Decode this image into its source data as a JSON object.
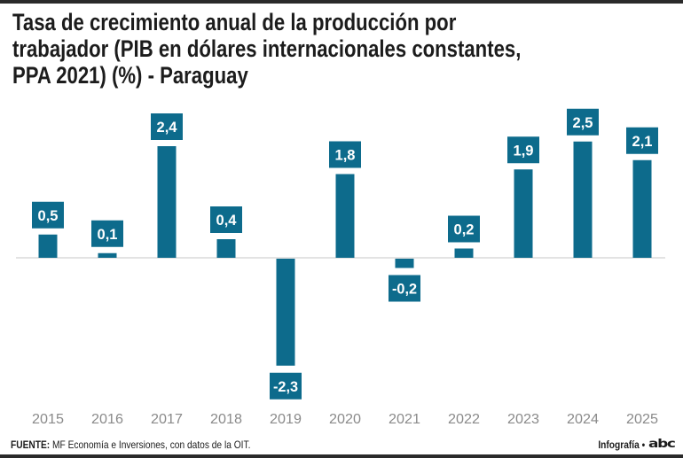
{
  "title_lines": [
    "Tasa de crecimiento anual de la producción por",
    "trabajador (PIB en dólares internacionales constantes,",
    "PPA 2021) (%) - Paraguay"
  ],
  "footer": {
    "source_label": "FUENTE:",
    "source_text": "MF Economía e Inversiones, con datos de la OIT.",
    "credit": "Infografía •",
    "logo": "abc"
  },
  "colors": {
    "bar": "#0d6b8c",
    "baseline": "#e3e3e3",
    "tick_text": "#8a8a8a"
  },
  "chart_data": {
    "type": "bar",
    "title": "Tasa de crecimiento anual de la producción por trabajador (PIB en dólares internacionales constantes, PPA 2021) (%) - Paraguay",
    "xlabel": "",
    "ylabel": "",
    "categories": [
      "2015",
      "2016",
      "2017",
      "2018",
      "2019",
      "2020",
      "2021",
      "2022",
      "2023",
      "2024",
      "2025"
    ],
    "values": [
      0.5,
      0.1,
      2.4,
      0.4,
      -2.3,
      1.8,
      -0.2,
      0.2,
      1.9,
      2.5,
      2.1
    ],
    "data_labels": [
      "0,5",
      "0,1",
      "2,4",
      "0,4",
      "-2,3",
      "1,8",
      "-0,2",
      "0,2",
      "1,9",
      "2,5",
      "2,1"
    ],
    "ylim": [
      -2.5,
      2.6
    ],
    "grid": false,
    "legend": "none"
  }
}
